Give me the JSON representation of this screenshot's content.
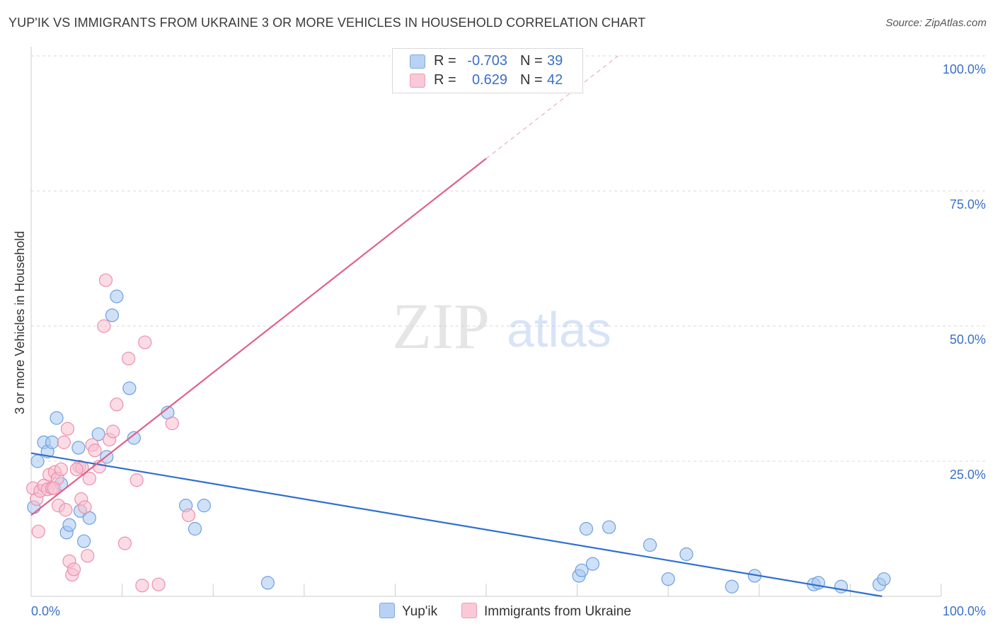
{
  "title": "YUP'IK VS IMMIGRANTS FROM UKRAINE 3 OR MORE VEHICLES IN HOUSEHOLD CORRELATION CHART",
  "source": "Source: ZipAtlas.com",
  "watermark": {
    "zip": "ZIP",
    "atlas": "atlas"
  },
  "legend": {
    "series1": {
      "r_label": "R =",
      "r_value": "-0.703",
      "n_label": "N =",
      "n_value": "39"
    },
    "series2": {
      "r_label": "R =",
      "r_value": "0.629",
      "n_label": "N =",
      "n_value": "42"
    }
  },
  "bottom_legend": {
    "series1": "Yup'ik",
    "series2": "Immigrants from Ukraine"
  },
  "colors": {
    "blue_fill": "#a8c8f0",
    "blue_stroke": "#6e9fe0",
    "blue_line": "#2f6fd0",
    "pink_fill": "#f8c0d0",
    "pink_stroke": "#ec8fab",
    "pink_line": "#e0608a",
    "axis_label": "#3b6fc9",
    "grid": "#d8d8d8"
  },
  "chart_data": {
    "type": "scatter",
    "title": "YUP'IK VS IMMIGRANTS FROM UKRAINE 3 OR MORE VEHICLES IN HOUSEHOLD CORRELATION CHART",
    "xlabel": "",
    "ylabel": "3 or more Vehicles in Household",
    "xlim": [
      0,
      100
    ],
    "ylim": [
      0,
      100
    ],
    "x_tick_labels": [
      "0.0%",
      "100.0%"
    ],
    "y_ticks": [
      {
        "value": 25,
        "label": "25.0%"
      },
      {
        "value": 50,
        "label": "50.0%"
      },
      {
        "value": 75,
        "label": "75.0%"
      },
      {
        "value": 100,
        "label": "100.0%"
      }
    ],
    "grid": true,
    "legend_position": "top-center",
    "series": [
      {
        "name": "Yup'ik",
        "color": "#a8c8f0",
        "points": [
          [
            0.3,
            16.5
          ],
          [
            0.7,
            25.0
          ],
          [
            1.4,
            28.5
          ],
          [
            1.8,
            26.8
          ],
          [
            2.3,
            28.5
          ],
          [
            2.8,
            33.0
          ],
          [
            3.3,
            20.8
          ],
          [
            3.9,
            11.8
          ],
          [
            4.2,
            13.2
          ],
          [
            5.2,
            27.5
          ],
          [
            5.4,
            15.8
          ],
          [
            5.8,
            10.2
          ],
          [
            6.4,
            14.5
          ],
          [
            7.4,
            30.0
          ],
          [
            8.3,
            25.8
          ],
          [
            8.9,
            52.0
          ],
          [
            9.4,
            55.5
          ],
          [
            10.8,
            38.5
          ],
          [
            11.3,
            29.3
          ],
          [
            15.0,
            34.0
          ],
          [
            17.0,
            16.8
          ],
          [
            18.0,
            12.5
          ],
          [
            19.0,
            16.8
          ],
          [
            26.0,
            2.5
          ],
          [
            60.2,
            3.8
          ],
          [
            60.5,
            4.8
          ],
          [
            61.0,
            12.5
          ],
          [
            61.7,
            6.0
          ],
          [
            63.5,
            12.8
          ],
          [
            68.0,
            9.5
          ],
          [
            70.0,
            3.2
          ],
          [
            72.0,
            7.8
          ],
          [
            77.0,
            1.8
          ],
          [
            79.5,
            3.8
          ],
          [
            86.0,
            2.2
          ],
          [
            86.5,
            2.5
          ],
          [
            89.0,
            1.8
          ],
          [
            93.2,
            2.2
          ],
          [
            93.7,
            3.2
          ]
        ],
        "trend": {
          "x": [
            0,
            93.5
          ],
          "y": [
            26.5,
            0.0
          ]
        }
      },
      {
        "name": "Immigrants from Ukraine",
        "color": "#f8c0d0",
        "points": [
          [
            0.2,
            20.0
          ],
          [
            0.6,
            18.0
          ],
          [
            0.8,
            12.0
          ],
          [
            1.0,
            19.5
          ],
          [
            1.4,
            20.5
          ],
          [
            1.8,
            19.8
          ],
          [
            2.0,
            22.5
          ],
          [
            2.3,
            20.0
          ],
          [
            2.6,
            23.0
          ],
          [
            2.9,
            21.8
          ],
          [
            3.0,
            16.8
          ],
          [
            3.3,
            23.5
          ],
          [
            3.6,
            28.5
          ],
          [
            3.8,
            16.0
          ],
          [
            4.0,
            31.0
          ],
          [
            4.2,
            6.5
          ],
          [
            4.5,
            4.0
          ],
          [
            4.7,
            5.0
          ],
          [
            5.3,
            24.0
          ],
          [
            5.5,
            18.0
          ],
          [
            5.6,
            23.8
          ],
          [
            5.9,
            16.5
          ],
          [
            6.2,
            7.5
          ],
          [
            6.4,
            21.8
          ],
          [
            6.7,
            28.0
          ],
          [
            7.0,
            27.0
          ],
          [
            7.5,
            24.0
          ],
          [
            8.0,
            50.0
          ],
          [
            8.2,
            58.5
          ],
          [
            8.6,
            29.0
          ],
          [
            9.0,
            30.5
          ],
          [
            9.4,
            35.5
          ],
          [
            10.3,
            9.8
          ],
          [
            10.7,
            44.0
          ],
          [
            11.6,
            21.5
          ],
          [
            12.2,
            2.0
          ],
          [
            12.5,
            47.0
          ],
          [
            14.0,
            2.2
          ],
          [
            15.5,
            32.0
          ],
          [
            17.3,
            15.0
          ],
          [
            5.0,
            23.5
          ],
          [
            2.5,
            20.0
          ]
        ],
        "trend": {
          "x": [
            0,
            50
          ],
          "y": [
            15.0,
            81.0
          ]
        },
        "trend_extension": {
          "x": [
            50,
            64.5
          ],
          "y": [
            81.0,
            100.0
          ]
        }
      }
    ]
  }
}
